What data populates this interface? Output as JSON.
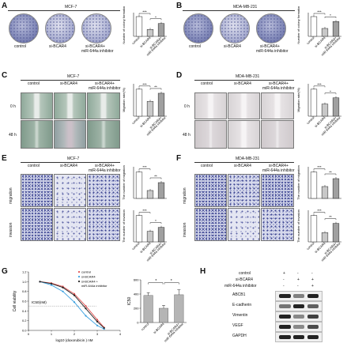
{
  "panels": {
    "A": {
      "letter": "A",
      "cell_line": "MCF-7",
      "ylabel": "Number of colony formation",
      "dish_labels": [
        "control",
        "si-BCAR4",
        "si-BCAR4+",
        "miR-644a inhibitor"
      ]
    },
    "B": {
      "letter": "B",
      "cell_line": "MDA-MB-231",
      "ylabel": "Number of colony formation",
      "dish_labels": [
        "control",
        "si-BCAR4",
        "si-BCAR4+",
        "miR-644a inhibitor"
      ]
    },
    "C": {
      "letter": "C",
      "cell_line": "MCF-7",
      "ylabel": "Migration rate(%)",
      "col_labels": [
        "control",
        "si-BCAR4",
        "si-BCAR4+",
        "miR-644a inhibitor"
      ],
      "row_labels": [
        "0 h",
        "48 h"
      ]
    },
    "D": {
      "letter": "D",
      "cell_line": "MDA-MB-231",
      "ylabel": "Migration rate(%)",
      "col_labels": [
        "control",
        "si-BCAR4",
        "si-BCAR4+",
        "miR-644a inhibitor"
      ],
      "row_labels": [
        "0 h",
        "48 h"
      ]
    },
    "E": {
      "letter": "E",
      "cell_line": "MCF-7",
      "ylabel_top": "The number of migration",
      "ylabel_bottom": "The number of invasion",
      "col_labels": [
        "control",
        "si-BCAR4",
        "si-BCAR4+",
        "miR-644a inhibitor"
      ],
      "row_labels": [
        "migration",
        "invasion"
      ]
    },
    "F": {
      "letter": "F",
      "cell_line": "MDA-MB-231",
      "ylabel_top": "The number of migration",
      "ylabel_bottom": "The number of invasion",
      "col_labels": [
        "control",
        "si-BCAR4",
        "si-BCAR4+",
        "miR-644a inhibitor"
      ],
      "row_labels": [
        "migration",
        "invasion"
      ]
    },
    "G": {
      "letter": "G",
      "ylabel": "Cell viability",
      "xlabel": "log10 (doxorubicin )   nM",
      "annotation": "IC50(nM)",
      "ylabel2": "IC50",
      "legend": [
        "control",
        "si-BCAR4",
        "si-BCAR4 +",
        "miR-644a inhibitor"
      ]
    },
    "H": {
      "letter": "H",
      "conditions": [
        "control",
        "si-BCAR4",
        "miR-644a inhibitor"
      ],
      "signs": [
        [
          "+",
          "-",
          "-"
        ],
        [
          "-",
          "+",
          "+"
        ],
        [
          "-",
          "-",
          "+"
        ]
      ],
      "bands": [
        "ABCB1",
        "E-cadherin",
        "Vimentin",
        "VEGF",
        "GAPDH"
      ]
    }
  },
  "bar_categories": [
    "control",
    "si-BCAR4",
    "si-BCAR4+",
    "miR-644a inhibitor"
  ],
  "chart_data": [
    {
      "type": "bar",
      "panel": "A",
      "categories": [
        "control",
        "si-BCAR4",
        "si-BCAR4+ miR-644a inhibitor"
      ],
      "values": [
        1.0,
        0.35,
        0.65
      ],
      "ylim": [
        0,
        1.2
      ],
      "significance": [
        "***",
        "*"
      ]
    },
    {
      "type": "bar",
      "panel": "B",
      "categories": [
        "control",
        "si-BCAR4",
        "si-BCAR4+ miR-644a inhibitor"
      ],
      "values": [
        1.0,
        0.4,
        0.75
      ],
      "ylim": [
        0,
        1.2
      ],
      "significance": [
        "***",
        "*"
      ]
    },
    {
      "type": "bar",
      "panel": "C",
      "categories": [
        "control",
        "si-BCAR4",
        "si-BCAR4+ miR-644a inhibitor"
      ],
      "values": [
        1.0,
        0.55,
        0.85
      ],
      "ylim": [
        0,
        1.2
      ],
      "significance": [
        "***",
        "**"
      ]
    },
    {
      "type": "bar",
      "panel": "D",
      "categories": [
        "control",
        "si-BCAR4",
        "si-BCAR4+ miR-644a inhibitor"
      ],
      "values": [
        1.0,
        0.45,
        0.68
      ],
      "ylim": [
        0,
        1.2
      ],
      "significance": [
        "***",
        "*"
      ]
    },
    {
      "type": "bar",
      "panel": "E-migration",
      "categories": [
        "control",
        "si-BCAR4",
        "si-BCAR4+ miR-644a inhibitor"
      ],
      "values": [
        1.0,
        0.3,
        0.6
      ],
      "ylim": [
        0,
        1.2
      ],
      "significance": [
        "***",
        "**"
      ]
    },
    {
      "type": "bar",
      "panel": "E-invasion",
      "categories": [
        "control",
        "si-BCAR4",
        "si-BCAR4+ miR-644a inhibitor"
      ],
      "values": [
        1.0,
        0.4,
        0.55
      ],
      "ylim": [
        0,
        1.2
      ],
      "significance": [
        "***",
        "*"
      ]
    },
    {
      "type": "bar",
      "panel": "F-migration",
      "categories": [
        "control",
        "si-BCAR4",
        "si-BCAR4+ miR-644a inhibitor"
      ],
      "values": [
        1.0,
        0.45,
        0.75
      ],
      "ylim": [
        0,
        1.2
      ],
      "significance": [
        "***",
        "**"
      ]
    },
    {
      "type": "bar",
      "panel": "F-invasion",
      "categories": [
        "control",
        "si-BCAR4",
        "si-BCAR4+ miR-644a inhibitor"
      ],
      "values": [
        1.0,
        0.35,
        0.7
      ],
      "ylim": [
        0,
        1.2
      ],
      "significance": [
        "***",
        "**"
      ]
    },
    {
      "type": "line",
      "panel": "G-curve",
      "ylabel": "Cell viability",
      "xlabel": "log10 (doxorubicin )   nM",
      "xlim": [
        0,
        4
      ],
      "ylim": [
        0,
        1.2
      ],
      "xticks": [
        0,
        1,
        2,
        3,
        4
      ],
      "yticks": [
        0.0,
        0.2,
        0.4,
        0.6,
        0.8,
        1.0,
        1.2
      ],
      "series": [
        {
          "name": "control",
          "color": "#e05050",
          "x": [
            0.5,
            1.0,
            1.5,
            2.0,
            2.5,
            3.0,
            3.3
          ],
          "y": [
            1.0,
            0.97,
            0.9,
            0.75,
            0.5,
            0.22,
            0.06
          ]
        },
        {
          "name": "si-BCAR4",
          "color": "#3aa0e0",
          "x": [
            0.5,
            1.0,
            1.5,
            2.0,
            2.5,
            3.0,
            3.3
          ],
          "y": [
            1.0,
            0.93,
            0.8,
            0.58,
            0.3,
            0.1,
            0.03
          ]
        },
        {
          "name": "miR-644a inhibitor",
          "color": "#222222",
          "x": [
            0.5,
            1.0,
            1.5,
            2.0,
            2.5,
            3.0,
            3.3
          ],
          "y": [
            1.0,
            0.96,
            0.88,
            0.72,
            0.45,
            0.18,
            0.05
          ]
        }
      ]
    },
    {
      "type": "bar",
      "panel": "G-IC50",
      "ylabel": "IC50",
      "categories": [
        "control",
        "si-BCAR4",
        "si-BCAR4+ miR-644a inhibitor"
      ],
      "values": [
        380,
        200,
        390
      ],
      "ylim": [
        0,
        600
      ],
      "yticks": [
        0,
        200,
        400,
        600
      ],
      "significance": [
        "*",
        "*"
      ]
    }
  ],
  "colors": {
    "bar_white": "#ffffff",
    "bar_gray": "#c8c8c8",
    "bar_dark": "#a0a0a0",
    "g_bar": "#b5b5b5"
  }
}
